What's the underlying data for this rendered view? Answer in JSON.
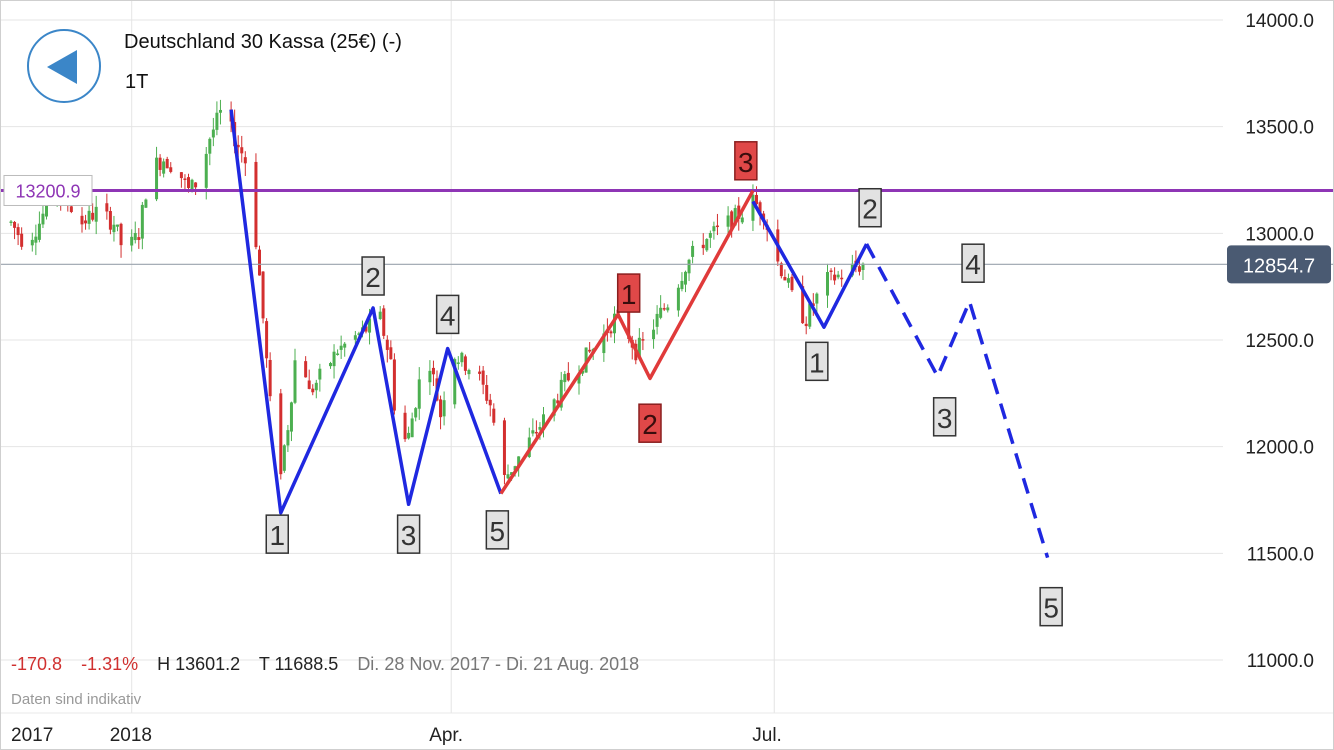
{
  "header": {
    "title": "Deutschland 30 Kassa (25€) (-)",
    "timeframe": "1T"
  },
  "stats": {
    "change": "-170.8",
    "change_pct": "-1.31%",
    "high": "H 13601.2",
    "low": "T 11688.5",
    "range": "Di. 28 Nov. 2017 - Di. 21 Aug. 2018"
  },
  "disclaimer": "Daten sind indikativ",
  "icons": {
    "back": "back-arrow-icon"
  },
  "colors": {
    "up": "#4caf50",
    "down": "#d32f2f",
    "wave_blue": "#1f28e0",
    "wave_red": "#e03a3a",
    "resistance": "#8e35b5",
    "current_badge": "#4a5a72",
    "grid": "#e4e4e4"
  },
  "chart_data": {
    "type": "candlestick",
    "title": "Deutschland 30 Kassa (25€) (-)",
    "xlabel": "",
    "ylabel": "",
    "ylim": [
      10870,
      14050
    ],
    "y_ticks": [
      11000,
      11500,
      12000,
      12500,
      13000,
      13500,
      14000
    ],
    "y_tick_labels": [
      "11000.0",
      "11500.0",
      "12000.0",
      "12500.0",
      "13000.0",
      "13500.0",
      "14000.0"
    ],
    "x_ticks": [
      {
        "label": "2017",
        "date": "2017-11-28"
      },
      {
        "label": "2018",
        "date": "2018-01-01"
      },
      {
        "label": "Apr.",
        "date": "2018-04-01"
      },
      {
        "label": "Jul.",
        "date": "2018-07-01"
      }
    ],
    "x_range": [
      "2017-11-28",
      "2018-08-28"
    ],
    "grid": true,
    "current_price": {
      "value": 12854.7,
      "label": "12854.7"
    },
    "resistance": {
      "value": 13200.9,
      "label": "13200.9"
    },
    "last_close_line": 12854.7,
    "price_path": [
      [
        "2017-11-28",
        13050
      ],
      [
        "2017-12-02",
        12950
      ],
      [
        "2017-12-06",
        13050
      ],
      [
        "2017-12-10",
        13200
      ],
      [
        "2017-12-14",
        13150
      ],
      [
        "2017-12-18",
        13050
      ],
      [
        "2017-12-22",
        13100
      ],
      [
        "2017-12-27",
        13050
      ],
      [
        "2017-12-30",
        12900
      ],
      [
        "2018-01-03",
        13000
      ],
      [
        "2018-01-06",
        13300
      ],
      [
        "2018-01-10",
        13350
      ],
      [
        "2018-01-14",
        13300
      ],
      [
        "2018-01-17",
        13200
      ],
      [
        "2018-01-20",
        13250
      ],
      [
        "2018-01-23",
        13450
      ],
      [
        "2018-01-26",
        13560
      ],
      [
        "2018-01-29",
        13480
      ],
      [
        "2018-02-01",
        13380
      ],
      [
        "2018-02-03",
        13300
      ],
      [
        "2018-02-06",
        12800
      ],
      [
        "2018-02-09",
        12200
      ],
      [
        "2018-02-12",
        11900
      ],
      [
        "2018-02-14",
        12100
      ],
      [
        "2018-02-17",
        12550
      ],
      [
        "2018-02-20",
        12250
      ],
      [
        "2018-02-24",
        12350
      ],
      [
        "2018-02-28",
        12450
      ],
      [
        "2018-03-04",
        12500
      ],
      [
        "2018-03-08",
        12550
      ],
      [
        "2018-03-12",
        12600
      ],
      [
        "2018-03-15",
        12400
      ],
      [
        "2018-03-17",
        12000
      ],
      [
        "2018-03-20",
        12050
      ],
      [
        "2018-03-23",
        12300
      ],
      [
        "2018-03-26",
        12400
      ],
      [
        "2018-03-29",
        12150
      ],
      [
        "2018-04-01",
        12450
      ],
      [
        "2018-04-04",
        12400
      ],
      [
        "2018-04-08",
        12350
      ],
      [
        "2018-04-12",
        12200
      ],
      [
        "2018-04-16",
        11850
      ],
      [
        "2018-04-20",
        11950
      ],
      [
        "2018-04-24",
        12050
      ],
      [
        "2018-04-28",
        12150
      ],
      [
        "2018-05-03",
        12300
      ],
      [
        "2018-05-08",
        12400
      ],
      [
        "2018-05-13",
        12500
      ],
      [
        "2018-05-17",
        12600
      ],
      [
        "2018-05-20",
        12560
      ],
      [
        "2018-05-23",
        12450
      ],
      [
        "2018-05-26",
        12500
      ],
      [
        "2018-05-29",
        12600
      ],
      [
        "2018-06-02",
        12700
      ],
      [
        "2018-06-06",
        12850
      ],
      [
        "2018-06-10",
        12950
      ],
      [
        "2018-06-14",
        13000
      ],
      [
        "2018-06-18",
        13050
      ],
      [
        "2018-06-22",
        13100
      ],
      [
        "2018-06-25",
        13150
      ],
      [
        "2018-06-28",
        13100
      ],
      [
        "2018-07-01",
        12900
      ],
      [
        "2018-07-04",
        12800
      ],
      [
        "2018-07-07",
        12650
      ],
      [
        "2018-07-10",
        12600
      ],
      [
        "2018-07-13",
        12700
      ],
      [
        "2018-07-16",
        12780
      ],
      [
        "2018-07-19",
        12800
      ],
      [
        "2018-07-22",
        12830
      ],
      [
        "2018-07-26",
        12854.7
      ]
    ],
    "wave_lines": [
      {
        "name": "",
        "color": "blue",
        "style": "solid",
        "points": [
          [
            "2018-01-29",
            13580
          ],
          [
            "2018-02-12",
            11690
          ],
          [
            "2018-03-10",
            12650
          ],
          [
            "2018-03-20",
            11730
          ],
          [
            "2018-03-31",
            12460
          ],
          [
            "2018-04-15",
            11780
          ]
        ]
      },
      {
        "name": "",
        "color": "red",
        "style": "solid",
        "points": [
          [
            "2018-04-15",
            11780
          ],
          [
            "2018-05-18",
            12620
          ],
          [
            "2018-05-27",
            12320
          ],
          [
            "2018-06-25",
            13200
          ]
        ]
      },
      {
        "name": "",
        "color": "blue",
        "style": "solid",
        "points": [
          [
            "2018-06-25",
            13150
          ],
          [
            "2018-07-15",
            12560
          ],
          [
            "2018-07-27",
            12950
          ]
        ]
      },
      {
        "name": "",
        "color": "blue",
        "style": "dashed",
        "points": [
          [
            "2018-07-27",
            12950
          ],
          [
            "2018-08-16",
            12330
          ],
          [
            "2018-08-25",
            12680
          ],
          [
            "2018-09-16",
            11480
          ]
        ]
      }
    ],
    "wave_labels": [
      {
        "text": "1",
        "date": "2018-02-11",
        "y": 11590,
        "style": "gray"
      },
      {
        "text": "2",
        "date": "2018-03-10",
        "y": 12800,
        "style": "gray"
      },
      {
        "text": "3",
        "date": "2018-03-20",
        "y": 11590,
        "style": "gray"
      },
      {
        "text": "4",
        "date": "2018-03-31",
        "y": 12620,
        "style": "gray"
      },
      {
        "text": "5",
        "date": "2018-04-14",
        "y": 11610,
        "style": "gray"
      },
      {
        "text": "1",
        "date": "2018-05-21",
        "y": 12720,
        "style": "red"
      },
      {
        "text": "2",
        "date": "2018-05-27",
        "y": 12110,
        "style": "red"
      },
      {
        "text": "3",
        "date": "2018-06-23",
        "y": 13340,
        "style": "red"
      },
      {
        "text": "1",
        "date": "2018-07-13",
        "y": 12400,
        "style": "gray"
      },
      {
        "text": "2",
        "date": "2018-07-28",
        "y": 13120,
        "style": "gray"
      },
      {
        "text": "3",
        "date": "2018-08-18",
        "y": 12140,
        "style": "gray"
      },
      {
        "text": "4",
        "date": "2018-08-26",
        "y": 12860,
        "style": "gray"
      },
      {
        "text": "5",
        "date": "2018-09-17",
        "y": 11250,
        "style": "gray"
      }
    ]
  }
}
